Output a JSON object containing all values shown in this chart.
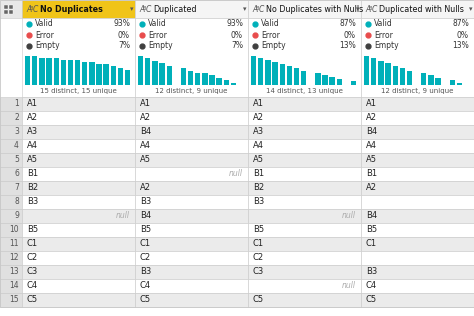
{
  "columns": [
    "No Duplicates",
    "Duplicated",
    "No Duplicates with Nulls",
    "Duplicated with Nulls"
  ],
  "stats": [
    {
      "valid": 93,
      "error": 0,
      "empty": 7,
      "distinct": 15,
      "unique": 15
    },
    {
      "valid": 93,
      "error": 0,
      "empty": 7,
      "distinct": 12,
      "unique": 9
    },
    {
      "valid": 87,
      "error": 0,
      "empty": 13,
      "distinct": 14,
      "unique": 13
    },
    {
      "valid": 87,
      "error": 0,
      "empty": 13,
      "distinct": 12,
      "unique": 9
    }
  ],
  "rows": [
    [
      "A1",
      "A1",
      "A1",
      "A1"
    ],
    [
      "A2",
      "A2",
      "A2",
      "A2"
    ],
    [
      "A3",
      "B4",
      "A3",
      "B4"
    ],
    [
      "A4",
      "A4",
      "A4",
      "A4"
    ],
    [
      "A5",
      "A5",
      "A5",
      "A5"
    ],
    [
      "B1",
      "",
      "B1",
      "B1"
    ],
    [
      "B2",
      "A2",
      "B2",
      "A2"
    ],
    [
      "B3",
      "B3",
      "B3",
      ""
    ],
    [
      "",
      "B4",
      "",
      "B4"
    ],
    [
      "B5",
      "B5",
      "B5",
      "B5"
    ],
    [
      "C1",
      "C1",
      "C1",
      "C1"
    ],
    [
      "C2",
      "C2",
      "C2",
      ""
    ],
    [
      "C3",
      "B3",
      "C3",
      "B3"
    ],
    [
      "C4",
      "C4",
      "",
      "C4"
    ],
    [
      "C5",
      "C5",
      "C5",
      "C5"
    ]
  ],
  "nulls": [
    [
      null,
      null,
      null,
      null
    ],
    [
      null,
      null,
      null,
      null
    ],
    [
      null,
      null,
      null,
      null
    ],
    [
      null,
      null,
      null,
      null
    ],
    [
      null,
      null,
      null,
      null
    ],
    [
      null,
      "null",
      null,
      null
    ],
    [
      null,
      null,
      null,
      null
    ],
    [
      null,
      null,
      null,
      null
    ],
    [
      "null",
      null,
      "null",
      null
    ],
    [
      null,
      null,
      null,
      null
    ],
    [
      null,
      null,
      null,
      null
    ],
    [
      null,
      null,
      null,
      null
    ],
    [
      null,
      null,
      null,
      null
    ],
    [
      null,
      null,
      "null",
      null
    ],
    [
      null,
      null,
      null,
      null
    ]
  ],
  "row_numbers": [
    1,
    2,
    3,
    4,
    5,
    6,
    7,
    8,
    9,
    10,
    11,
    12,
    13,
    14,
    15
  ],
  "teal_color": "#00b0b9",
  "bar_heights_col0": [
    15,
    15,
    14,
    14,
    14,
    13,
    13,
    13,
    12,
    12,
    11,
    11,
    10,
    9,
    8
  ],
  "bar_heights_col1": [
    12,
    11,
    10,
    9,
    8,
    0,
    7,
    6,
    5,
    5,
    4,
    3,
    2,
    1,
    0
  ],
  "bar_heights_col2": [
    14,
    13,
    12,
    11,
    10,
    9,
    8,
    7,
    0,
    6,
    5,
    4,
    3,
    0,
    2
  ],
  "bar_heights_col3": [
    12,
    11,
    10,
    9,
    8,
    7,
    6,
    0,
    5,
    4,
    3,
    0,
    2,
    1,
    0
  ],
  "header_bg": "#f0c419",
  "header_text_bg": "#f5f5f5",
  "valid_color": "#00b0b9",
  "error_color": "#e84c4c",
  "empty_color": "#404040",
  "alt_row_bg": "#ebebeb",
  "white_row_bg": "#ffffff",
  "grid_color": "#c8c8c8",
  "row_num_bg": "#e0e0e0",
  "null_color": "#aaaaaa"
}
